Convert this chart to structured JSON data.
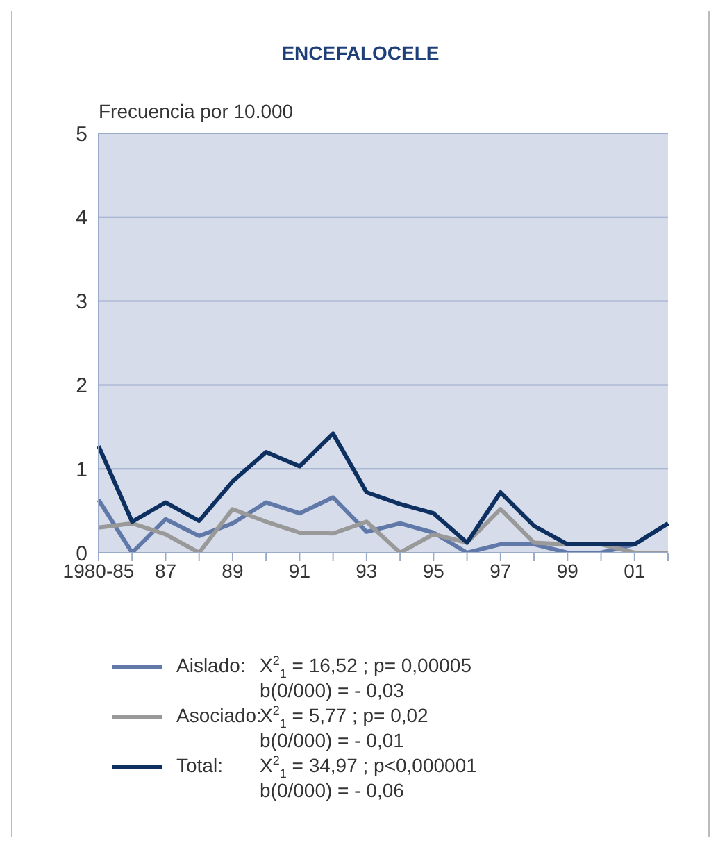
{
  "chart_data": {
    "type": "line",
    "title": "ENCEFALOCELE",
    "ylabel": "Frecuencia por 10.000",
    "categories": [
      "1980-85",
      null,
      "87",
      null,
      "89",
      null,
      "91",
      null,
      "93",
      null,
      "95",
      null,
      "97",
      null,
      "99",
      null,
      "01",
      null
    ],
    "series": [
      {
        "name": "Aislado:",
        "color": "#6079a8",
        "values": [
          0.63,
          0.0,
          0.4,
          0.2,
          0.35,
          0.6,
          0.47,
          0.66,
          0.25,
          0.35,
          0.24,
          0.0,
          0.1,
          0.1,
          0.0,
          0.0,
          0.1,
          0.35
        ]
      },
      {
        "name": "Asociado:",
        "color": "#999999",
        "values": [
          0.3,
          0.35,
          0.22,
          0.0,
          0.52,
          0.37,
          0.24,
          0.23,
          0.37,
          0.0,
          0.22,
          0.12,
          0.52,
          0.12,
          0.1,
          0.1,
          0.0,
          0.0
        ]
      },
      {
        "name": "Total:",
        "color": "#0d3060",
        "values": [
          1.27,
          0.37,
          0.6,
          0.38,
          0.85,
          1.2,
          1.03,
          1.42,
          0.72,
          0.58,
          0.47,
          0.12,
          0.72,
          0.32,
          0.1,
          0.1,
          0.1,
          0.35
        ]
      }
    ],
    "ylim": [
      0,
      5
    ],
    "yticks": [
      0,
      1,
      2,
      3,
      4,
      5
    ],
    "grid": "y",
    "legend": "bottom",
    "marker": "none",
    "line_style": "solid",
    "annotations": [
      "X$^{2}$$_{1}$ = 16,52 ;  p= 0,00005",
      "b(0/000) = - 0,03",
      "X$^{2}$$_{1}$ = 5,77 ;  p= 0,02",
      "b(0/000) = - 0,01",
      "X$^{2}$$_{1}$ = 34,97 ;  p<0,000001",
      "b(0/000) = - 0,06"
    ]
  }
}
